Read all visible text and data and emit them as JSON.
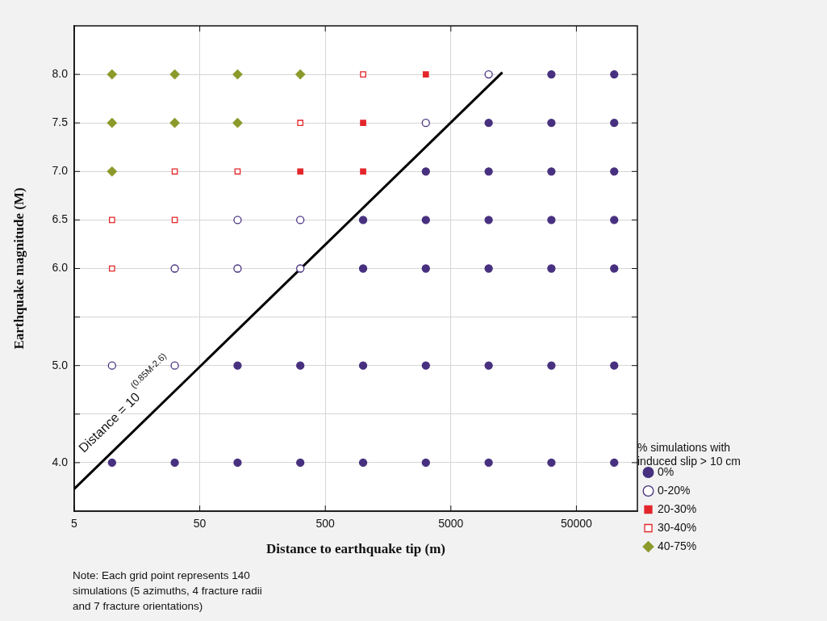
{
  "chart_data": {
    "type": "scatter",
    "xlabel": "Distance to earthquake tip (m)",
    "ylabel": "Earthquake magnitude (M)",
    "legend_title": "% simulations with\ninduced slip > 10 cm",
    "legend": "right",
    "log": "x",
    "grid": true,
    "xlim": [
      5,
      153000
    ],
    "xticks": [
      5,
      50,
      500,
      5000,
      50000
    ],
    "ylim": [
      3.5,
      8.5
    ],
    "yticks": [
      {
        "value": 4,
        "label": "4.0"
      },
      {
        "value": 4.5,
        "label": null
      },
      {
        "value": 5,
        "label": "5.0"
      },
      {
        "value": 5.5,
        "label": null
      },
      {
        "value": 6,
        "label": "6.0"
      },
      {
        "value": 6.5,
        "label": "6.5"
      },
      {
        "value": 7,
        "label": "7.0"
      },
      {
        "value": 7.5,
        "label": "7.5"
      },
      {
        "value": 8,
        "label": "8.0"
      }
    ],
    "series": [
      {
        "name": "0%",
        "color": "#47307f",
        "marker": "circle",
        "x": [
          31600,
          100000,
          10000,
          31600,
          100000,
          3160,
          10000,
          31600,
          100000,
          1000,
          3160,
          10000,
          31600,
          100000,
          1000,
          3160,
          10000,
          31600,
          100000,
          100,
          316,
          1000,
          3160,
          10000,
          31600,
          100000,
          10,
          31.6,
          100,
          316,
          1000,
          3160,
          10000,
          31600,
          100000
        ],
        "values": [
          8,
          8,
          7.5,
          7.5,
          7.5,
          7,
          7,
          7,
          7,
          6.5,
          6.5,
          6.5,
          6.5,
          6.5,
          6,
          6,
          6,
          6,
          6,
          5,
          5,
          5,
          5,
          5,
          5,
          5,
          4,
          4,
          4,
          4,
          4,
          4,
          4,
          4,
          4
        ]
      },
      {
        "name": "0-20%",
        "color": "#47307f",
        "marker": "circle-open",
        "x": [
          10000,
          3160,
          100,
          316,
          31.6,
          100,
          316,
          10,
          31.6
        ],
        "values": [
          8,
          7.5,
          6.5,
          6.5,
          6,
          6,
          6,
          5,
          5
        ]
      },
      {
        "name": "20-30%",
        "color": "#e3262b",
        "marker": "square",
        "x": [
          3160,
          1000,
          316,
          1000
        ],
        "values": [
          8,
          7.5,
          7,
          7
        ]
      },
      {
        "name": "30-40%",
        "color": "#e3262b",
        "marker": "square-open",
        "x": [
          1000,
          316,
          31.6,
          100,
          10,
          31.6,
          10
        ],
        "values": [
          8,
          7.5,
          7,
          7,
          6.5,
          6.5,
          6
        ]
      },
      {
        "name": "40-75%",
        "color": "#8b9a2b",
        "marker": "diamond",
        "x": [
          10,
          31.6,
          100,
          316,
          10,
          31.6,
          100,
          10
        ],
        "values": [
          8,
          8,
          8,
          8,
          7.5,
          7.5,
          7.5,
          7
        ]
      },
      {
        "type": "line",
        "color": "#000000",
        "marker": "none",
        "x": [
          5,
          12850
        ],
        "values": [
          3.73,
          8.02
        ]
      }
    ],
    "annotations": [
      "Distance = 10$^{(0.85M-2.6)}$",
      "Note: Each grid point represents 140\nsimulations (5 azimuths, 4 fracture radii\nand 7 fracture orientations)"
    ]
  }
}
